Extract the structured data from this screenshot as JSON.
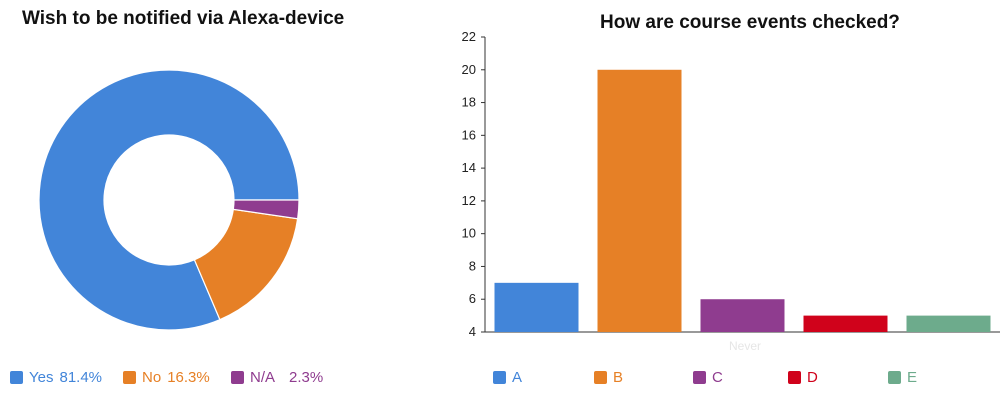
{
  "chart_data": [
    {
      "type": "pie",
      "title": "Wish to be notified via Alexa-device",
      "labels": [
        "Yes",
        "No",
        "N/A"
      ],
      "values": [
        81.4,
        16.3,
        2.3
      ],
      "value_labels": [
        "81.4%",
        "16.3%",
        "2.3%"
      ],
      "colors": [
        "#4285d9",
        "#e68026",
        "#8f3c8f"
      ],
      "donut": true,
      "legend": "bottom-left"
    },
    {
      "type": "bar",
      "title": "How are course events checked?",
      "categories": [
        "A",
        "B",
        "C",
        "D",
        "E"
      ],
      "values": [
        7,
        20,
        6,
        5,
        5
      ],
      "colors": [
        "#4285d9",
        "#e68026",
        "#8f3c8f",
        "#d0021b",
        "#6dab8c"
      ],
      "x_annotation": "Never",
      "ylim": [
        4,
        22
      ],
      "yticks": [
        4,
        6,
        8,
        10,
        12,
        14,
        16,
        18,
        20,
        22
      ],
      "grid": false,
      "legend": "bottom"
    }
  ]
}
